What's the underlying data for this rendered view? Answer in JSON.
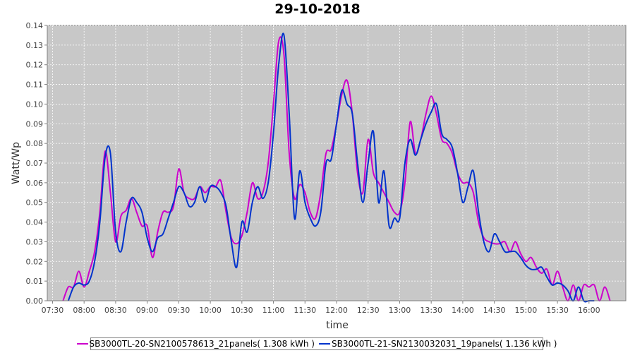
{
  "chart_data": {
    "type": "line",
    "title": "29-10-2018",
    "xlabel": "time",
    "ylabel": "Watt/Wp",
    "x_range": [
      "07:25",
      "16:35"
    ],
    "ylim": [
      0,
      0.14
    ],
    "x_ticks": [
      "07:30",
      "08:00",
      "08:30",
      "09:00",
      "09:30",
      "10:00",
      "10:30",
      "11:00",
      "11:30",
      "12:00",
      "12:30",
      "13:00",
      "13:30",
      "14:00",
      "14:30",
      "15:00",
      "15:30",
      "16:00"
    ],
    "y_ticks": [
      "0.00",
      "0.01",
      "0.02",
      "0.03",
      "0.04",
      "0.05",
      "0.06",
      "0.07",
      "0.08",
      "0.09",
      "0.10",
      "0.11",
      "0.12",
      "0.13",
      "0.14"
    ],
    "grid": true,
    "background": "#c8c8c8",
    "legend_position": "bottom",
    "series": [
      {
        "name": "SB3000TL-20-SN2100578613_21panels( 1.308 kWh )",
        "color": "#cc00cc",
        "points": [
          [
            "07:40",
            0.0
          ],
          [
            "07:45",
            0.007
          ],
          [
            "07:50",
            0.007
          ],
          [
            "07:55",
            0.015
          ],
          [
            "08:00",
            0.007
          ],
          [
            "08:05",
            0.015
          ],
          [
            "08:10",
            0.025
          ],
          [
            "08:15",
            0.045
          ],
          [
            "08:20",
            0.076
          ],
          [
            "08:25",
            0.055
          ],
          [
            "08:30",
            0.03
          ],
          [
            "08:35",
            0.043
          ],
          [
            "08:40",
            0.046
          ],
          [
            "08:45",
            0.052
          ],
          [
            "08:50",
            0.045
          ],
          [
            "08:55",
            0.038
          ],
          [
            "09:00",
            0.038
          ],
          [
            "09:05",
            0.022
          ],
          [
            "09:10",
            0.035
          ],
          [
            "09:15",
            0.045
          ],
          [
            "09:20",
            0.045
          ],
          [
            "09:25",
            0.048
          ],
          [
            "09:30",
            0.067
          ],
          [
            "09:35",
            0.055
          ],
          [
            "09:40",
            0.052
          ],
          [
            "09:45",
            0.052
          ],
          [
            "09:50",
            0.058
          ],
          [
            "09:55",
            0.055
          ],
          [
            "10:00",
            0.058
          ],
          [
            "10:05",
            0.058
          ],
          [
            "10:10",
            0.061
          ],
          [
            "10:15",
            0.045
          ],
          [
            "10:20",
            0.032
          ],
          [
            "10:25",
            0.029
          ],
          [
            "10:30",
            0.033
          ],
          [
            "10:35",
            0.045
          ],
          [
            "10:40",
            0.06
          ],
          [
            "10:45",
            0.052
          ],
          [
            "10:50",
            0.055
          ],
          [
            "10:55",
            0.07
          ],
          [
            "11:00",
            0.1
          ],
          [
            "11:05",
            0.132
          ],
          [
            "11:10",
            0.125
          ],
          [
            "11:15",
            0.075
          ],
          [
            "11:20",
            0.052
          ],
          [
            "11:25",
            0.059
          ],
          [
            "11:30",
            0.055
          ],
          [
            "11:35",
            0.045
          ],
          [
            "11:40",
            0.042
          ],
          [
            "11:45",
            0.055
          ],
          [
            "11:50",
            0.075
          ],
          [
            "11:55",
            0.077
          ],
          [
            "12:00",
            0.09
          ],
          [
            "12:05",
            0.105
          ],
          [
            "12:10",
            0.112
          ],
          [
            "12:15",
            0.095
          ],
          [
            "12:20",
            0.065
          ],
          [
            "12:25",
            0.055
          ],
          [
            "12:30",
            0.082
          ],
          [
            "12:35",
            0.065
          ],
          [
            "12:40",
            0.06
          ],
          [
            "12:45",
            0.055
          ],
          [
            "12:50",
            0.05
          ],
          [
            "12:55",
            0.045
          ],
          [
            "13:00",
            0.045
          ],
          [
            "13:05",
            0.06
          ],
          [
            "13:10",
            0.091
          ],
          [
            "13:15",
            0.075
          ],
          [
            "13:20",
            0.082
          ],
          [
            "13:25",
            0.095
          ],
          [
            "13:30",
            0.104
          ],
          [
            "13:35",
            0.095
          ],
          [
            "13:40",
            0.082
          ],
          [
            "13:45",
            0.08
          ],
          [
            "13:50",
            0.075
          ],
          [
            "13:55",
            0.065
          ],
          [
            "14:00",
            0.06
          ],
          [
            "14:05",
            0.06
          ],
          [
            "14:10",
            0.055
          ],
          [
            "14:15",
            0.04
          ],
          [
            "14:20",
            0.032
          ],
          [
            "14:25",
            0.03
          ],
          [
            "14:30",
            0.029
          ],
          [
            "14:35",
            0.029
          ],
          [
            "14:40",
            0.03
          ],
          [
            "14:45",
            0.025
          ],
          [
            "14:50",
            0.03
          ],
          [
            "14:55",
            0.024
          ],
          [
            "15:00",
            0.02
          ],
          [
            "15:05",
            0.022
          ],
          [
            "15:10",
            0.017
          ],
          [
            "15:15",
            0.014
          ],
          [
            "15:20",
            0.016
          ],
          [
            "15:25",
            0.008
          ],
          [
            "15:30",
            0.015
          ],
          [
            "15:35",
            0.007
          ],
          [
            "15:40",
            0.0
          ],
          [
            "15:45",
            0.008
          ],
          [
            "15:50",
            0.0
          ],
          [
            "15:55",
            0.008
          ],
          [
            "16:00",
            0.007
          ],
          [
            "16:05",
            0.008
          ],
          [
            "16:10",
            0.0
          ],
          [
            "16:15",
            0.007
          ],
          [
            "16:20",
            0.0
          ]
        ]
      },
      {
        "name": "SB3000TL-21-SN2130032031_19panels( 1.136 kWh )",
        "color": "#0033cc",
        "points": [
          [
            "07:45",
            0.0
          ],
          [
            "07:50",
            0.007
          ],
          [
            "07:55",
            0.009
          ],
          [
            "08:00",
            0.008
          ],
          [
            "08:05",
            0.01
          ],
          [
            "08:10",
            0.02
          ],
          [
            "08:15",
            0.04
          ],
          [
            "08:20",
            0.073
          ],
          [
            "08:25",
            0.075
          ],
          [
            "08:30",
            0.035
          ],
          [
            "08:35",
            0.025
          ],
          [
            "08:40",
            0.04
          ],
          [
            "08:45",
            0.052
          ],
          [
            "08:50",
            0.05
          ],
          [
            "08:55",
            0.045
          ],
          [
            "09:00",
            0.032
          ],
          [
            "09:05",
            0.025
          ],
          [
            "09:10",
            0.032
          ],
          [
            "09:15",
            0.034
          ],
          [
            "09:20",
            0.042
          ],
          [
            "09:25",
            0.05
          ],
          [
            "09:30",
            0.058
          ],
          [
            "09:35",
            0.055
          ],
          [
            "09:40",
            0.048
          ],
          [
            "09:45",
            0.05
          ],
          [
            "09:50",
            0.058
          ],
          [
            "09:55",
            0.05
          ],
          [
            "10:00",
            0.058
          ],
          [
            "10:05",
            0.058
          ],
          [
            "10:10",
            0.055
          ],
          [
            "10:15",
            0.048
          ],
          [
            "10:20",
            0.03
          ],
          [
            "10:25",
            0.017
          ],
          [
            "10:30",
            0.04
          ],
          [
            "10:35",
            0.035
          ],
          [
            "10:40",
            0.05
          ],
          [
            "10:45",
            0.058
          ],
          [
            "10:50",
            0.052
          ],
          [
            "10:55",
            0.06
          ],
          [
            "11:00",
            0.085
          ],
          [
            "11:05",
            0.12
          ],
          [
            "11:10",
            0.135
          ],
          [
            "11:15",
            0.095
          ],
          [
            "11:20",
            0.042
          ],
          [
            "11:25",
            0.066
          ],
          [
            "11:30",
            0.05
          ],
          [
            "11:35",
            0.042
          ],
          [
            "11:40",
            0.038
          ],
          [
            "11:45",
            0.045
          ],
          [
            "11:50",
            0.07
          ],
          [
            "11:55",
            0.072
          ],
          [
            "12:00",
            0.09
          ],
          [
            "12:05",
            0.107
          ],
          [
            "12:10",
            0.1
          ],
          [
            "12:15",
            0.095
          ],
          [
            "12:20",
            0.07
          ],
          [
            "12:25",
            0.05
          ],
          [
            "12:30",
            0.07
          ],
          [
            "12:35",
            0.086
          ],
          [
            "12:40",
            0.05
          ],
          [
            "12:45",
            0.066
          ],
          [
            "12:50",
            0.038
          ],
          [
            "12:55",
            0.042
          ],
          [
            "13:00",
            0.042
          ],
          [
            "13:05",
            0.07
          ],
          [
            "13:10",
            0.082
          ],
          [
            "13:15",
            0.074
          ],
          [
            "13:20",
            0.082
          ],
          [
            "13:25",
            0.09
          ],
          [
            "13:30",
            0.096
          ],
          [
            "13:35",
            0.1
          ],
          [
            "13:40",
            0.085
          ],
          [
            "13:45",
            0.082
          ],
          [
            "13:50",
            0.078
          ],
          [
            "13:55",
            0.065
          ],
          [
            "14:00",
            0.05
          ],
          [
            "14:05",
            0.058
          ],
          [
            "14:10",
            0.066
          ],
          [
            "14:15",
            0.045
          ],
          [
            "14:20",
            0.03
          ],
          [
            "14:25",
            0.025
          ],
          [
            "14:30",
            0.034
          ],
          [
            "14:35",
            0.03
          ],
          [
            "14:40",
            0.025
          ],
          [
            "14:45",
            0.025
          ],
          [
            "14:50",
            0.025
          ],
          [
            "14:55",
            0.022
          ],
          [
            "15:00",
            0.018
          ],
          [
            "15:05",
            0.016
          ],
          [
            "15:10",
            0.016
          ],
          [
            "15:15",
            0.017
          ],
          [
            "15:20",
            0.012
          ],
          [
            "15:25",
            0.008
          ],
          [
            "15:30",
            0.009
          ],
          [
            "15:35",
            0.008
          ],
          [
            "15:40",
            0.005
          ],
          [
            "15:45",
            0.0
          ],
          [
            "15:50",
            0.007
          ],
          [
            "15:55",
            0.0
          ],
          [
            "16:00",
            0.0
          ],
          [
            "16:05",
            0.0
          ]
        ]
      }
    ]
  }
}
